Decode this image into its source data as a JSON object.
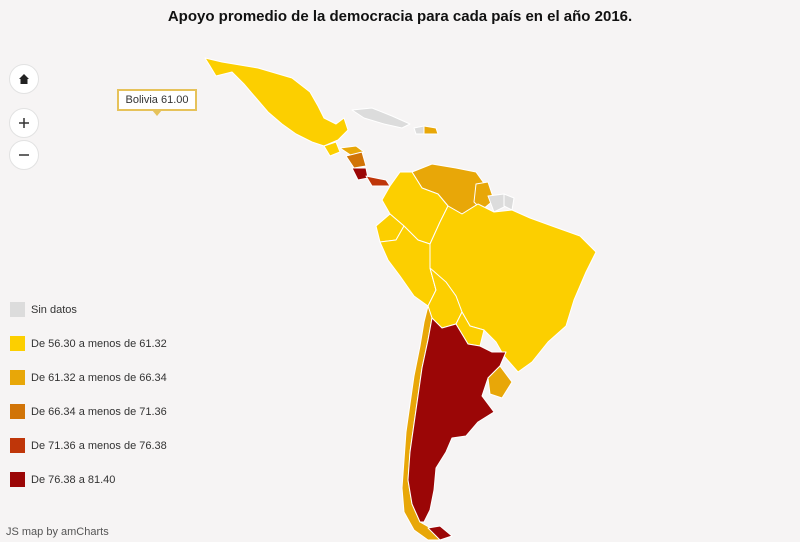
{
  "title": "Apoyo promedio de la democracia para cada país en el año 2016.",
  "controls": {
    "home": "home-icon",
    "zoom_in": "plus-icon",
    "zoom_out": "minus-icon"
  },
  "tooltip": {
    "text": "Bolivia 61.00",
    "country": "Bolivia",
    "value": 61.0
  },
  "legend": [
    {
      "label": "Sin datos",
      "color": "#dcdcdc"
    },
    {
      "label": "De 56.30 a menos de 61.32",
      "color": "#fccf00"
    },
    {
      "label": "De 61.32 a menos de 66.34",
      "color": "#e8a708"
    },
    {
      "label": "De 66.34 a menos de 71.36",
      "color": "#d17407"
    },
    {
      "label": "De 71.36 a menos de 76.38",
      "color": "#bf3609"
    },
    {
      "label": "De 76.38 a 81.40",
      "color": "#9b0606"
    }
  ],
  "credit": "JS map by amCharts",
  "colors": {
    "background": "#f6f4f4",
    "border": "#ffffff",
    "no_data": "#dcdcdc",
    "bin1": "#fccf00",
    "bin2": "#e8a708",
    "bin3": "#d17407",
    "bin4": "#bf3609",
    "bin5": "#9b0606"
  }
}
